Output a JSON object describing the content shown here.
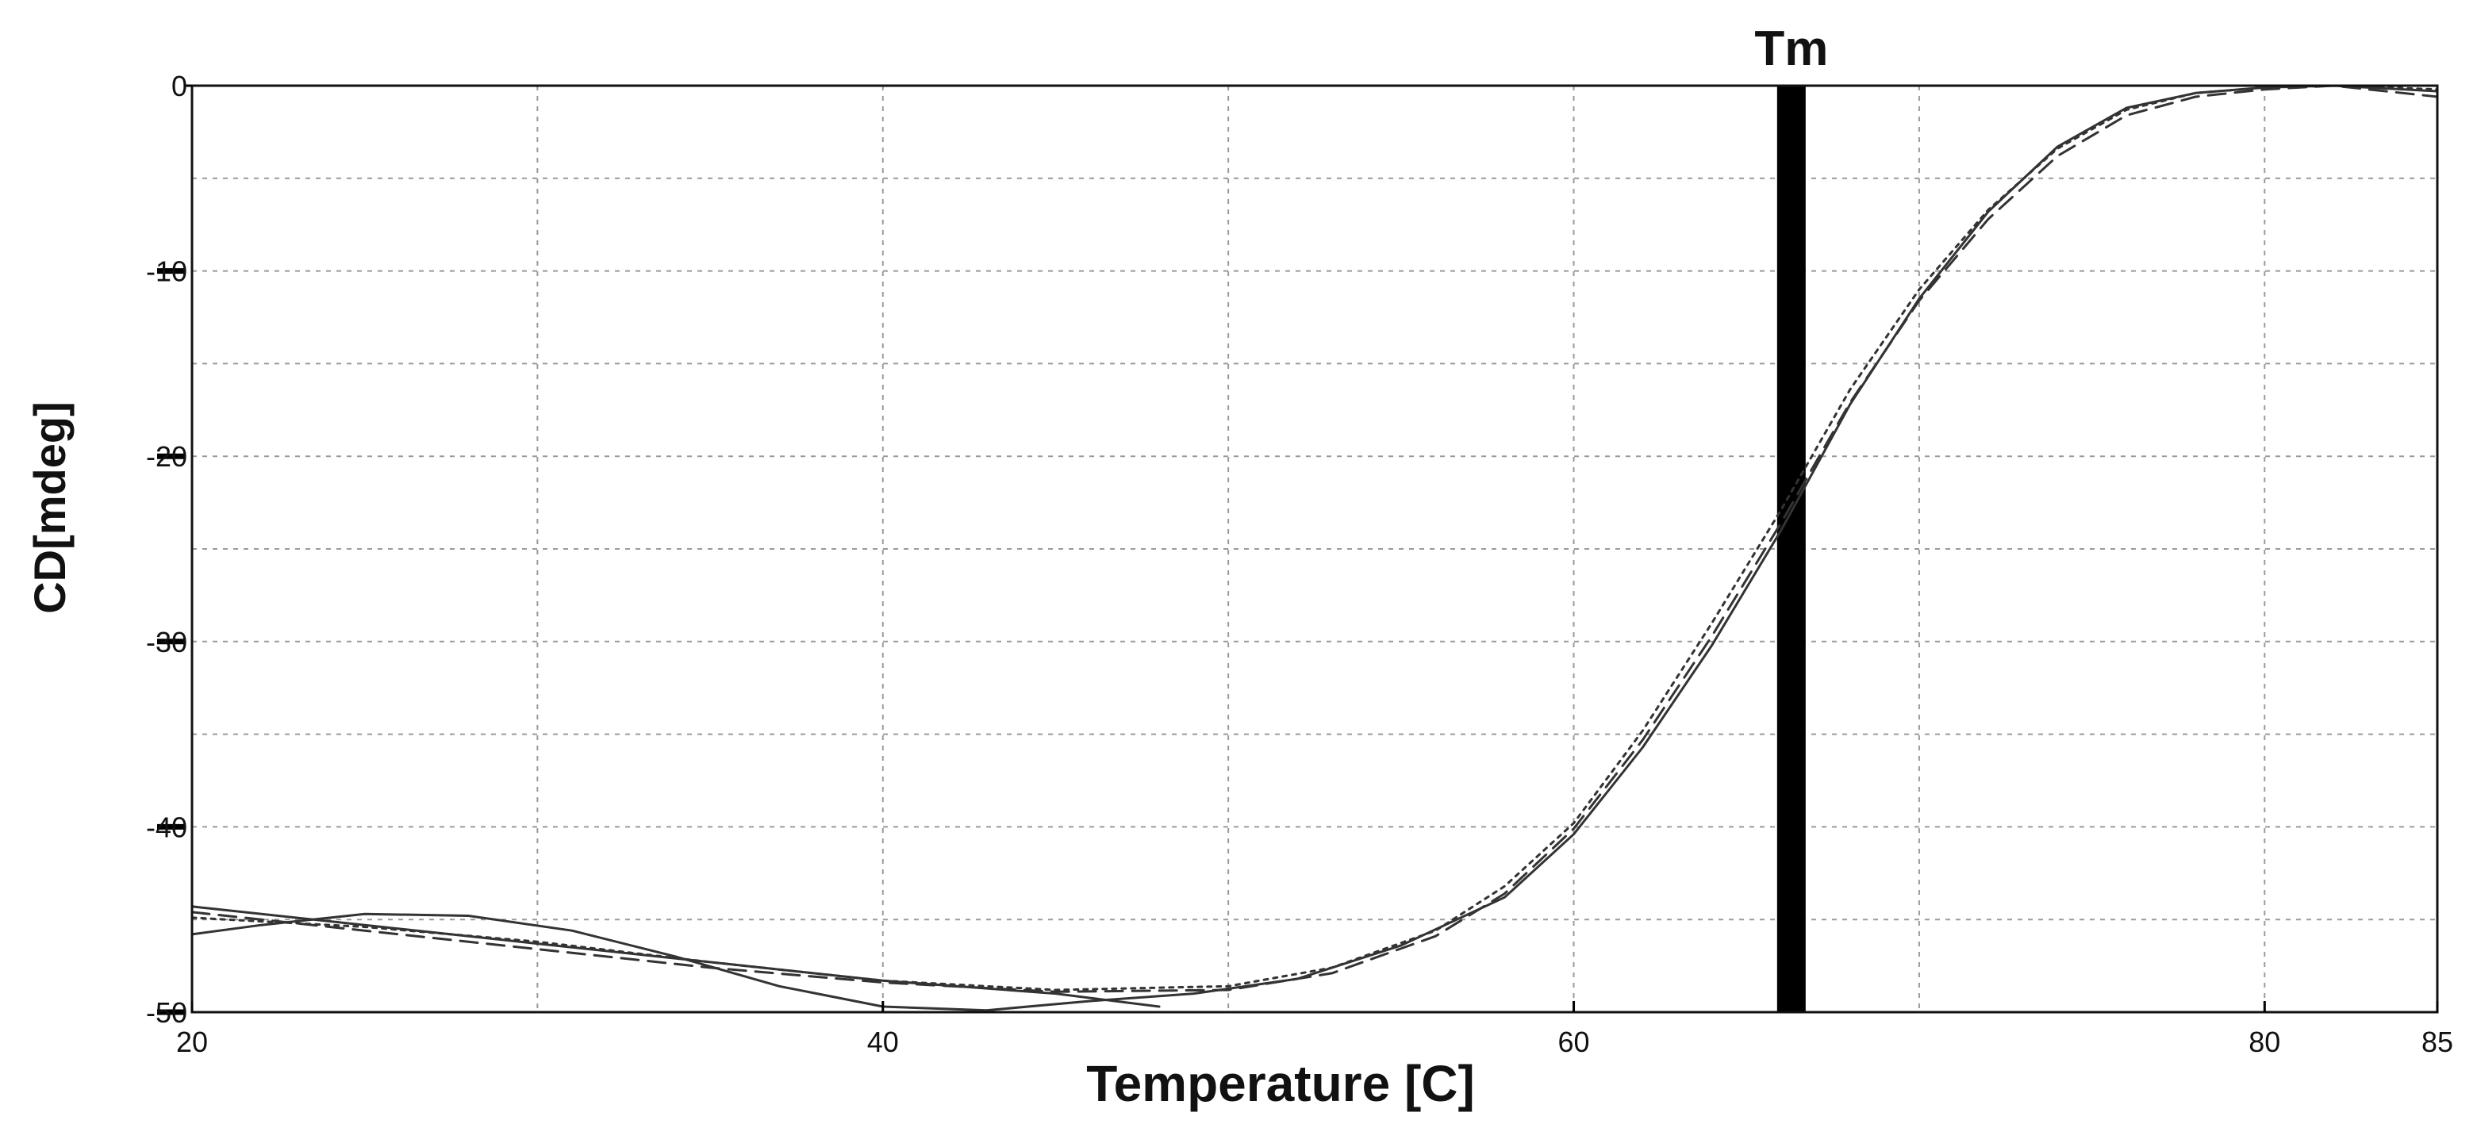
{
  "chart_data": {
    "type": "line",
    "xlabel": "Temperature [C]",
    "ylabel": "CD[mdeg]",
    "xlim": [
      20,
      85
    ],
    "ylim": [
      -50,
      0
    ],
    "x_ticks": [
      20,
      40,
      60,
      80,
      85
    ],
    "y_ticks": [
      0,
      -10,
      -20,
      -30,
      -40,
      -50
    ],
    "x_minor_ticks": [
      30,
      50,
      70
    ],
    "y_minor_ticks": [
      -5,
      -15,
      -25,
      -35,
      -45
    ],
    "grid": true,
    "annotations": [
      {
        "text": "Tm",
        "x": 66.3,
        "type": "vertical-band"
      }
    ],
    "series": [
      {
        "style": "solid",
        "points": [
          [
            20,
            -45.8
          ],
          [
            22,
            -45.3
          ],
          [
            25,
            -44.7
          ],
          [
            28,
            -44.8
          ],
          [
            31,
            -45.6
          ],
          [
            34,
            -47.0
          ],
          [
            37,
            -48.6
          ],
          [
            40,
            -49.7
          ],
          [
            43,
            -49.9
          ],
          [
            46,
            -49.4
          ],
          [
            49,
            -49.0
          ],
          [
            52,
            -48.2
          ],
          [
            55,
            -46.4
          ],
          [
            58,
            -43.8
          ],
          [
            60,
            -40.4
          ],
          [
            62,
            -35.7
          ],
          [
            64,
            -30.2
          ],
          [
            66,
            -24.0
          ],
          [
            68,
            -17.2
          ],
          [
            70,
            -11.5
          ],
          [
            72,
            -6.8
          ],
          [
            74,
            -3.3
          ],
          [
            76,
            -1.2
          ],
          [
            78,
            -0.4
          ],
          [
            80,
            -0.1
          ],
          [
            82,
            0.0
          ],
          [
            85,
            -0.3
          ]
        ]
      },
      {
        "style": "dashed",
        "points": [
          [
            20,
            -44.6
          ],
          [
            25,
            -45.6
          ],
          [
            30,
            -46.6
          ],
          [
            35,
            -47.6
          ],
          [
            40,
            -48.4
          ],
          [
            45,
            -48.9
          ],
          [
            50,
            -48.8
          ],
          [
            53,
            -47.9
          ],
          [
            56,
            -45.9
          ],
          [
            58,
            -43.6
          ],
          [
            60,
            -40.1
          ],
          [
            62,
            -35.3
          ],
          [
            64,
            -29.7
          ],
          [
            66,
            -23.6
          ],
          [
            68,
            -17.1
          ],
          [
            70,
            -11.6
          ],
          [
            72,
            -7.2
          ],
          [
            74,
            -3.8
          ],
          [
            76,
            -1.6
          ],
          [
            78,
            -0.6
          ],
          [
            80,
            -0.2
          ],
          [
            82,
            0.0
          ],
          [
            85,
            -0.6
          ]
        ]
      },
      {
        "style": "dotted",
        "points": [
          [
            20,
            -44.9
          ],
          [
            25,
            -45.4
          ],
          [
            30,
            -46.2
          ],
          [
            35,
            -47.3
          ],
          [
            40,
            -48.3
          ],
          [
            45,
            -48.8
          ],
          [
            50,
            -48.6
          ],
          [
            53,
            -47.6
          ],
          [
            56,
            -45.6
          ],
          [
            58,
            -43.2
          ],
          [
            60,
            -39.8
          ],
          [
            62,
            -34.8
          ],
          [
            64,
            -29.0
          ],
          [
            66,
            -22.9
          ],
          [
            68,
            -16.4
          ],
          [
            70,
            -11.0
          ],
          [
            72,
            -6.7
          ],
          [
            74,
            -3.4
          ],
          [
            76,
            -1.3
          ],
          [
            78,
            -0.4
          ],
          [
            80,
            -0.1
          ],
          [
            82,
            0.0
          ],
          [
            85,
            -0.2
          ]
        ]
      },
      {
        "style": "thin",
        "points": [
          [
            20,
            -44.3
          ],
          [
            25,
            -45.3
          ],
          [
            30,
            -46.3
          ],
          [
            35,
            -47.3
          ],
          [
            40,
            -48.3
          ],
          [
            45,
            -49.0
          ],
          [
            48,
            -49.7
          ]
        ]
      }
    ]
  }
}
